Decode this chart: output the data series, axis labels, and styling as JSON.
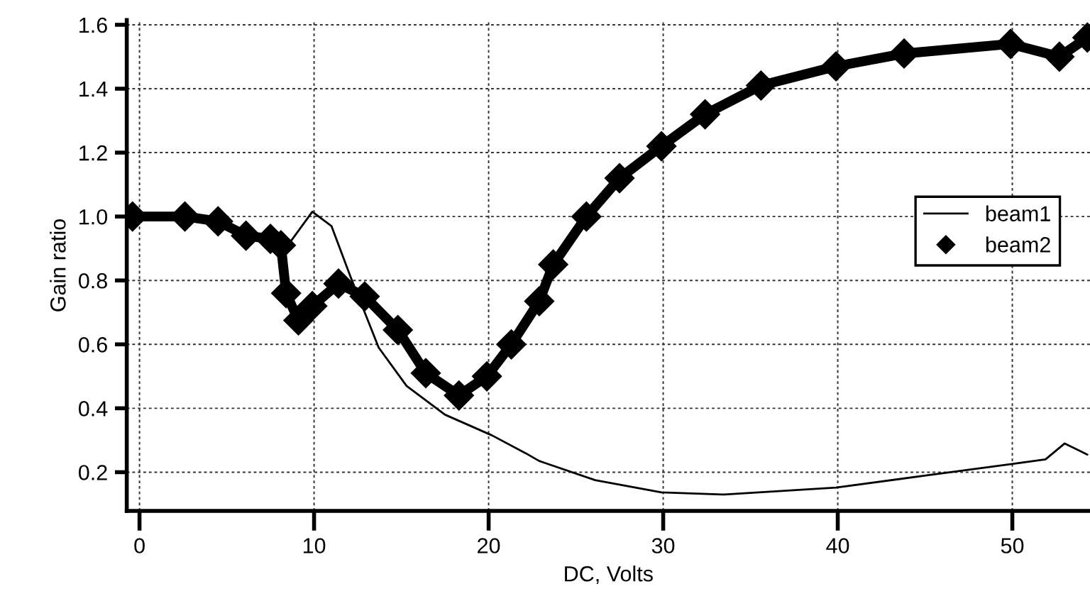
{
  "chart_data": {
    "type": "line",
    "xlabel": "DC, Volts",
    "ylabel": "Gain ratio",
    "xlim": [
      -0.73,
      54.45
    ],
    "ylim": [
      0.079,
      1.615
    ],
    "xticks": [
      0,
      10,
      20,
      30,
      40,
      50
    ],
    "yticks": [
      {
        "value": 0.2,
        "label": "0.2"
      },
      {
        "value": 0.4,
        "label": "0.4"
      },
      {
        "value": 0.6,
        "label": "0.6"
      },
      {
        "value": 0.8,
        "label": "0.8"
      },
      {
        "value": 1.0,
        "label": "1.0"
      },
      {
        "value": 1.2,
        "label": "1.2"
      },
      {
        "value": 1.4,
        "label": "1.4"
      },
      {
        "value": 1.6,
        "label": "1.6"
      }
    ],
    "grid": true,
    "legend": "right",
    "series": [
      {
        "name": "beam1",
        "color": "#000000",
        "marker": "none",
        "x": [
          -0.4,
          2.6,
          4.5,
          6.1,
          7.5,
          8.1,
          8.7,
          9.9,
          11.0,
          12.1,
          13.7,
          15.3,
          17.5,
          20.2,
          22.1,
          22.9,
          26.1,
          29.9,
          33.5,
          39.9,
          45.1,
          49.9,
          51.9,
          53.0,
          54.3
        ],
        "values": [
          1.0,
          1.0,
          0.985,
          0.94,
          0.93,
          0.92,
          0.925,
          1.015,
          0.97,
          0.81,
          0.59,
          0.47,
          0.38,
          0.315,
          0.26,
          0.235,
          0.175,
          0.137,
          0.13,
          0.152,
          0.19,
          0.225,
          0.24,
          0.29,
          0.255
        ]
      },
      {
        "name": "beam2",
        "color": "#000000",
        "marker": "diamond",
        "x": [
          -0.4,
          2.6,
          4.5,
          6.1,
          7.5,
          8.1,
          8.4,
          9.1,
          9.9,
          11.4,
          12.9,
          14.8,
          16.4,
          18.3,
          19.9,
          21.3,
          22.9,
          23.7,
          25.6,
          27.5,
          29.9,
          32.4,
          35.6,
          39.9,
          43.8,
          49.9,
          52.7,
          54.3
        ],
        "values": [
          1.0,
          1.0,
          0.985,
          0.94,
          0.93,
          0.91,
          0.76,
          0.675,
          0.72,
          0.79,
          0.75,
          0.645,
          0.51,
          0.44,
          0.5,
          0.6,
          0.735,
          0.85,
          1.0,
          1.12,
          1.22,
          1.32,
          1.41,
          1.47,
          1.51,
          1.54,
          1.5,
          1.56
        ]
      }
    ]
  }
}
